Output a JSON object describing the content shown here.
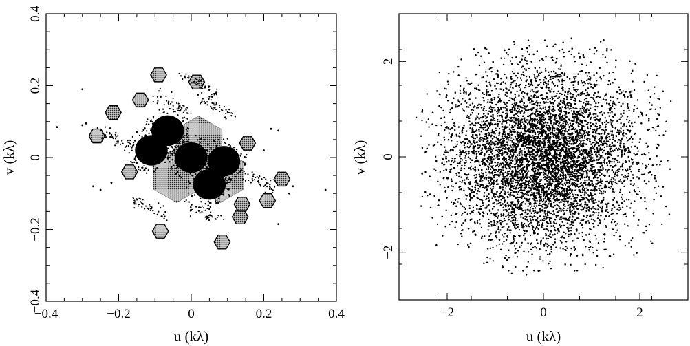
{
  "chart_data": [
    {
      "type": "scatter",
      "xlabel": "u  (kλ)",
      "ylabel": "v  (kλ)",
      "xlim": [
        -0.4,
        0.4
      ],
      "ylim": [
        -0.4,
        0.4
      ],
      "xticks": [
        -0.4,
        -0.2,
        0,
        0.2,
        0.4
      ],
      "yticks": [
        -0.4,
        -0.2,
        0,
        0.2,
        0.4
      ],
      "xtick_labels": [
        "−0.4",
        "−0.2",
        "0",
        "0.2",
        "0.4"
      ],
      "ytick_labels": [
        "−0.4",
        "−0.2",
        "0",
        "0.2",
        "0.4"
      ],
      "grid": false,
      "dense_clusters": [
        {
          "u": -0.065,
          "v": 0.075
        },
        {
          "u": -0.11,
          "v": 0.02
        },
        {
          "u": 0.09,
          "v": -0.01
        },
        {
          "u": 0.05,
          "v": -0.075
        },
        {
          "u": 0.0,
          "v": 0.0
        }
      ],
      "hexagon_centers": [
        {
          "u": -0.09,
          "v": 0.23
        },
        {
          "u": 0.015,
          "v": 0.21
        },
        {
          "u": -0.14,
          "v": 0.16
        },
        {
          "u": -0.215,
          "v": 0.125
        },
        {
          "u": -0.26,
          "v": 0.06
        },
        {
          "u": 0.155,
          "v": 0.04
        },
        {
          "u": 0.25,
          "v": -0.06
        },
        {
          "u": 0.21,
          "v": -0.12
        },
        {
          "u": 0.135,
          "v": -0.165
        },
        {
          "u": -0.085,
          "v": -0.205
        },
        {
          "u": 0.085,
          "v": -0.235
        },
        {
          "u": 0.14,
          "v": -0.13
        },
        {
          "u": -0.17,
          "v": -0.04
        }
      ],
      "scatter_points": [
        {
          "u": -0.37,
          "v": 0.085
        },
        {
          "u": -0.3,
          "v": 0.09
        },
        {
          "u": -0.29,
          "v": 0.095
        },
        {
          "u": -0.3,
          "v": 0.19
        },
        {
          "u": -0.27,
          "v": -0.08
        },
        {
          "u": -0.25,
          "v": -0.09
        },
        {
          "u": 0.37,
          "v": -0.09
        },
        {
          "u": 0.28,
          "v": -0.08
        },
        {
          "u": 0.27,
          "v": -0.1
        },
        {
          "u": 0.24,
          "v": -0.185
        },
        {
          "u": 0.24,
          "v": 0.075
        },
        {
          "u": 0.22,
          "v": 0.08
        },
        {
          "u": -0.22,
          "v": -0.07
        },
        {
          "u": 0.2,
          "v": 0.02
        }
      ]
    },
    {
      "type": "scatter",
      "xlabel": "u  (kλ)",
      "ylabel": "v  (kλ)",
      "xlim": [
        -3,
        3
      ],
      "ylim": [
        -3,
        3
      ],
      "xticks": [
        -2,
        0,
        2
      ],
      "yticks": [
        -2,
        0,
        2
      ],
      "xtick_labels": [
        "−2",
        "0",
        "2"
      ],
      "ytick_labels": [
        "−2",
        "0",
        "2"
      ],
      "grid": false,
      "distribution": {
        "center": [
          0.0,
          0.0
        ],
        "u_extent": [
          -2.6,
          2.6
        ],
        "v_extent": [
          -2.5,
          2.5
        ],
        "n_points": 9000
      }
    }
  ]
}
